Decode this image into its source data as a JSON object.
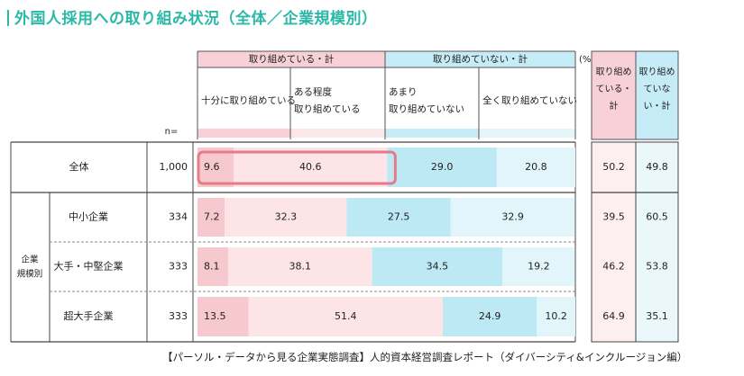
{
  "page_title": "外国人採用への取り組み状況（全体／企業規模別）",
  "source": "【パーソル・データから見る企業実態調査】人的資本経営調査レポート（ダイバーシティ&インクルージョン編）",
  "chart_data": {
    "type": "stacked-bar-table",
    "title": "外国人採用への取り組み状況（全体／企業規模別）",
    "unit_label": "(%)",
    "n_label": "n=",
    "group_label": "企業\n規模別",
    "header_groups": [
      {
        "label": "取り組めている・計",
        "span": 2
      },
      {
        "label": "取り組めていない・計",
        "span": 2
      }
    ],
    "categories": [
      "十分に取り組めている",
      "ある程度\n取り組めている",
      "あまり\n取り組めていない",
      "全く取り組めていない"
    ],
    "summary_headers": [
      "取り組め\nている・\n計",
      "取り組め\nていな\nい・計"
    ],
    "rows": [
      {
        "label": "全体",
        "n": "1,000",
        "values": [
          9.6,
          40.6,
          29.0,
          20.8
        ],
        "labels": [
          "9.6",
          "40.6",
          "29.0",
          "20.8"
        ],
        "summary": [
          "50.2",
          "49.8"
        ],
        "highlight": true
      },
      {
        "label": "中小企業",
        "n": "334",
        "values": [
          7.2,
          32.3,
          27.5,
          32.9
        ],
        "labels": [
          "7.2",
          "32.3",
          "27.5",
          "32.9"
        ],
        "summary": [
          "39.5",
          "60.5"
        ]
      },
      {
        "label": "大手・中堅企業",
        "n": "333",
        "values": [
          8.1,
          38.1,
          34.5,
          19.2
        ],
        "labels": [
          "8.1",
          "38.1",
          "34.5",
          "19.2"
        ],
        "summary": [
          "46.2",
          "53.8"
        ]
      },
      {
        "label": "超大手企業",
        "n": "333",
        "values": [
          13.5,
          51.4,
          24.9,
          10.2
        ],
        "labels": [
          "13.5",
          "51.4",
          "24.9",
          "10.2"
        ],
        "summary": [
          "64.9",
          "35.1"
        ]
      }
    ],
    "xlim": [
      0,
      100
    ],
    "colors": {
      "seg1": "#f6c9cf",
      "seg2": "#fce4e7",
      "seg3": "#bde9f5",
      "seg4": "#e1f5fa",
      "pink_header": "#f7d1d7",
      "blue_header": "#c6ecf7",
      "highlight": "#e57a88",
      "title": "#2bb8a6"
    }
  }
}
